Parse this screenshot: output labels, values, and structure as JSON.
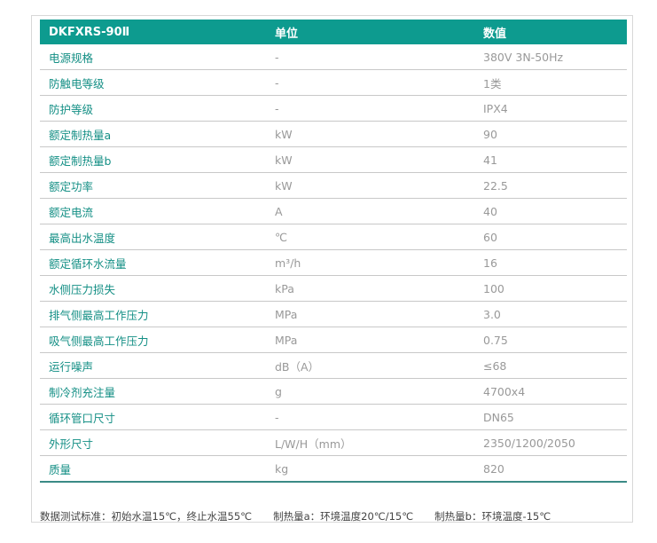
{
  "header": {
    "model": "DKFXRS-90Ⅱ",
    "unit": "单位",
    "value": "数值"
  },
  "rows": [
    {
      "name": "电源规格",
      "unit": "-",
      "value": "380V 3N-50Hz"
    },
    {
      "name": "防触电等级",
      "unit": "-",
      "value": "1类"
    },
    {
      "name": "防护等级",
      "unit": "-",
      "value": "IPX4"
    },
    {
      "name": "额定制热量a",
      "unit": "kW",
      "value": "90"
    },
    {
      "name": "额定制热量b",
      "unit": "kW",
      "value": "41"
    },
    {
      "name": "额定功率",
      "unit": "kW",
      "value": "22.5"
    },
    {
      "name": "额定电流",
      "unit": "A",
      "value": "40"
    },
    {
      "name": "最高出水温度",
      "unit": "℃",
      "value": "60"
    },
    {
      "name": "额定循环水流量",
      "unit": "m³/h",
      "value": "16"
    },
    {
      "name": "水侧压力损失",
      "unit": "kPa",
      "value": "100"
    },
    {
      "name": "排气侧最高工作压力",
      "unit": "MPa",
      "value": "3.0"
    },
    {
      "name": "吸气侧最高工作压力",
      "unit": "MPa",
      "value": "0.75"
    },
    {
      "name": "运行噪声",
      "unit": "dB（A）",
      "value": "≤68"
    },
    {
      "name": "制冷剂充注量",
      "unit": "g",
      "value": "4700x4"
    },
    {
      "name": "循环管口尺寸",
      "unit": "-",
      "value": "DN65"
    },
    {
      "name": "外形尺寸",
      "unit": "L/W/H（mm）",
      "value": "2350/1200/2050"
    },
    {
      "name": "质量",
      "unit": "kg",
      "value": "820"
    }
  ],
  "footnotes": [
    "数据测试标准：初始水温15℃，终止水温55℃",
    "制热量a：环境温度20℃/15℃",
    "制热量b：环境温度-15℃"
  ]
}
